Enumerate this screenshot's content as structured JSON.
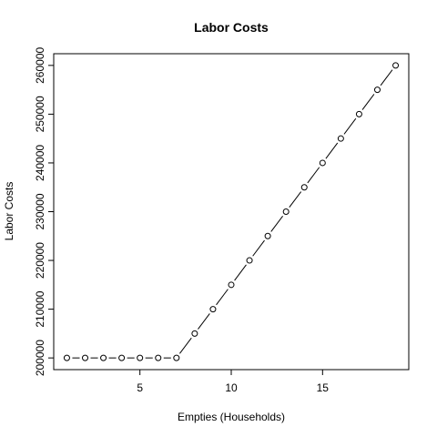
{
  "chart_data": {
    "type": "line",
    "title": "Labor Costs",
    "xlabel": "Empties (Households)",
    "ylabel": "Labor Costs",
    "x": [
      1,
      2,
      3,
      4,
      5,
      6,
      7,
      8,
      9,
      10,
      11,
      12,
      13,
      14,
      15,
      16,
      17,
      18,
      19
    ],
    "series": [
      {
        "values": [
          200000,
          200000,
          200000,
          200000,
          200000,
          200000,
          200000,
          205000,
          210000,
          215000,
          220000,
          225000,
          230000,
          235000,
          240000,
          245000,
          250000,
          255000,
          260000
        ]
      }
    ],
    "xlim": [
      0.28,
      19.72
    ],
    "ylim": [
      197600,
      262400
    ],
    "x_ticks": [
      5,
      10,
      15
    ],
    "y_ticks": [
      200000,
      210000,
      220000,
      230000,
      240000,
      250000,
      260000
    ],
    "y_tick_labels": [
      "200000",
      "210000",
      "220000",
      "230000",
      "240000",
      "250000",
      "260000"
    ],
    "x_tick_labels": [
      "5",
      "10",
      "15"
    ],
    "grid": false,
    "legend": "none"
  }
}
